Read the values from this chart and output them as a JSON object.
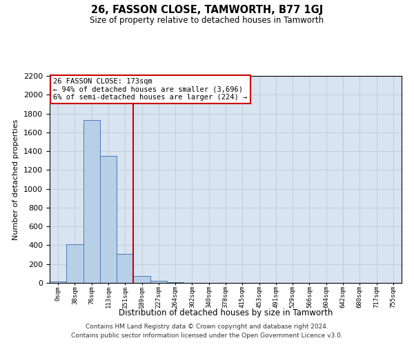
{
  "title": "26, FASSON CLOSE, TAMWORTH, B77 1GJ",
  "subtitle": "Size of property relative to detached houses in Tamworth",
  "xlabel": "Distribution of detached houses by size in Tamworth",
  "ylabel": "Number of detached properties",
  "bar_categories": [
    "0sqm",
    "38sqm",
    "76sqm",
    "113sqm",
    "151sqm",
    "189sqm",
    "227sqm",
    "264sqm",
    "302sqm",
    "340sqm",
    "378sqm",
    "415sqm",
    "453sqm",
    "491sqm",
    "529sqm",
    "566sqm",
    "604sqm",
    "642sqm",
    "680sqm",
    "717sqm",
    "755sqm"
  ],
  "bar_values": [
    15,
    410,
    1730,
    1350,
    310,
    75,
    20,
    5,
    2,
    0,
    0,
    0,
    0,
    0,
    0,
    0,
    0,
    0,
    0,
    0,
    0
  ],
  "bar_color": "#b8cfe8",
  "bar_edge_color": "#4a7ab5",
  "grid_color": "#c0ccd8",
  "background_color": "#d8e4f0",
  "vline_x": 4.5,
  "vline_color": "#cc0000",
  "annotation_text": "26 FASSON CLOSE: 173sqm\n← 94% of detached houses are smaller (3,696)\n6% of semi-detached houses are larger (224) →",
  "annotation_box_color": "#ffffff",
  "annotation_box_edge_color": "#cc0000",
  "ylim": [
    0,
    2200
  ],
  "yticks": [
    0,
    200,
    400,
    600,
    800,
    1000,
    1200,
    1400,
    1600,
    1800,
    2000,
    2200
  ],
  "footer_line1": "Contains HM Land Registry data © Crown copyright and database right 2024.",
  "footer_line2": "Contains public sector information licensed under the Open Government Licence v3.0."
}
